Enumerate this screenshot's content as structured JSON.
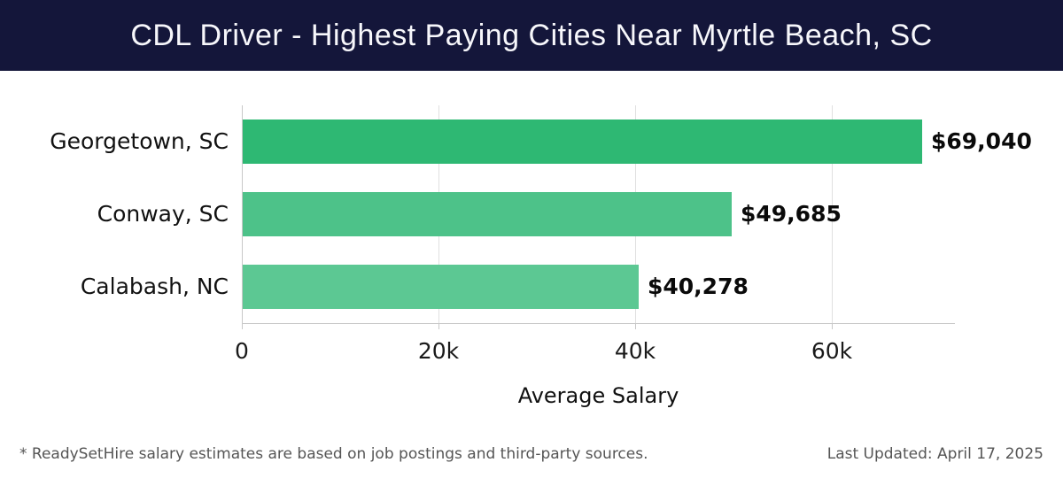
{
  "header": {
    "title": "CDL Driver - Highest Paying Cities Near Myrtle Beach, SC",
    "bg_color": "#14163a",
    "text_color": "#f7f7fb"
  },
  "chart_data": {
    "type": "bar",
    "orientation": "horizontal",
    "title": "CDL Driver - Highest Paying Cities Near Myrtle Beach, SC",
    "categories": [
      "Georgetown, SC",
      "Conway, SC",
      "Calabash, NC"
    ],
    "values": [
      69040,
      49685,
      40278
    ],
    "value_labels": [
      "$69,040",
      "$49,685",
      "$40,278"
    ],
    "bar_colors": [
      "#2eb873",
      "#4dc289",
      "#5cc893"
    ],
    "xlabel": "Average Salary",
    "ylabel": "",
    "xlim": [
      0,
      72500
    ],
    "xticks": [
      0,
      20000,
      40000,
      60000
    ],
    "xtick_labels": [
      "0",
      "20k",
      "40k",
      "60k"
    ],
    "grid": true,
    "legend": false,
    "gridline_color": "#e0e0e0",
    "spine_color": "#c8c8c8"
  },
  "footer": {
    "note": "* ReadySetHire salary estimates are based on job postings and third-party sources.",
    "note_color": "#555555",
    "updated": "Last Updated: April 17, 2025",
    "updated_color": "#555555"
  }
}
